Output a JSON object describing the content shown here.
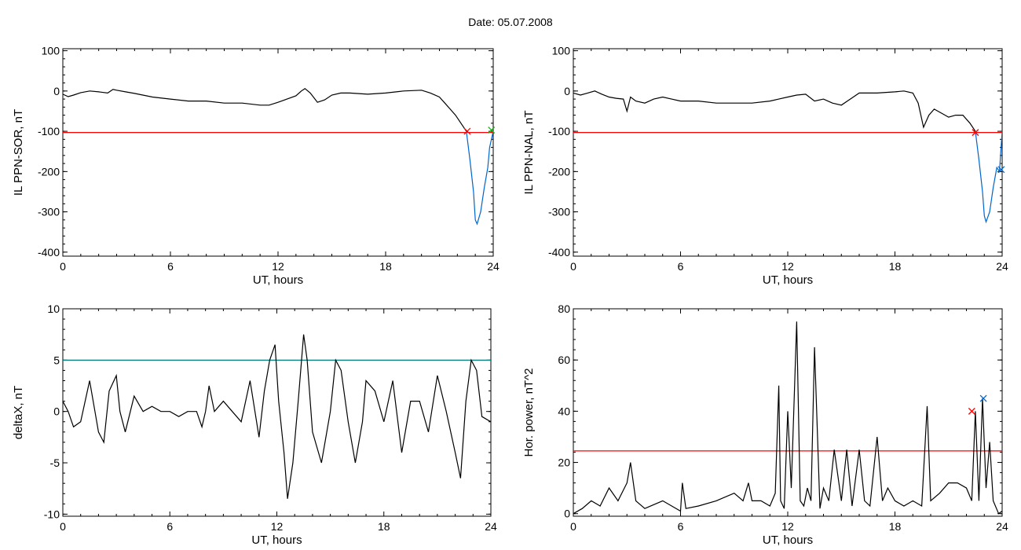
{
  "header": {
    "title": "Date:  05.07.2008"
  },
  "chart_data": [
    {
      "id": "p1",
      "type": "line",
      "title": "",
      "xlabel": "UT, hours",
      "ylabel": "IL PPN-SOR, nT",
      "xlim": [
        0,
        24
      ],
      "ylim": [
        -410,
        105
      ],
      "xticks": [
        0,
        6,
        12,
        18,
        24
      ],
      "yticks": [
        -400,
        -300,
        -200,
        -100,
        0,
        100
      ],
      "threshold": {
        "value": -103,
        "color": "#ff0000"
      },
      "series": [
        {
          "color": "#000000",
          "x": [
            0,
            0.3,
            0.6,
            1,
            1.5,
            2,
            2.5,
            2.8,
            3,
            3.5,
            4,
            5,
            6,
            7,
            8,
            9,
            10,
            11,
            11.5,
            12,
            12.5,
            13,
            13.3,
            13.5,
            13.8,
            14.2,
            14.6,
            15,
            15.5,
            16,
            17,
            18,
            19,
            20,
            20.5,
            21,
            21.3,
            21.6,
            21.9,
            22.2,
            22.5
          ],
          "y": [
            -8,
            -14,
            -10,
            -4,
            0,
            -2,
            -5,
            4,
            2,
            -2,
            -6,
            -15,
            -20,
            -25,
            -25,
            -30,
            -30,
            -35,
            -35,
            -28,
            -20,
            -12,
            0,
            6,
            -5,
            -28,
            -22,
            -10,
            -5,
            -5,
            -8,
            -5,
            0,
            2,
            -5,
            -15,
            -30,
            -45,
            -60,
            -80,
            -100
          ]
        },
        {
          "color": "#0066cc",
          "x": [
            22.5,
            22.7,
            22.9,
            23.0,
            23.1,
            23.3,
            23.5,
            23.7,
            23.8,
            24
          ],
          "y": [
            -100,
            -170,
            -250,
            -320,
            -330,
            -300,
            -240,
            -190,
            -140,
            -100
          ]
        }
      ],
      "markers": [
        {
          "x": 22.55,
          "y": -100,
          "symbol": "x",
          "color": "#ff0000"
        },
        {
          "x": 23.9,
          "y": -97,
          "symbol": "x",
          "color": "#22aa22"
        }
      ]
    },
    {
      "id": "p2",
      "type": "line",
      "title": "",
      "xlabel": "UT, hours",
      "ylabel": "IL PPN-NAL, nT",
      "xlim": [
        0,
        24
      ],
      "ylim": [
        -410,
        105
      ],
      "xticks": [
        0,
        6,
        12,
        18,
        24
      ],
      "yticks": [
        -400,
        -300,
        -200,
        -100,
        0,
        100
      ],
      "threshold": {
        "value": -103,
        "color": "#ff0000"
      },
      "series": [
        {
          "color": "#000000",
          "x": [
            0,
            0.4,
            0.8,
            1.2,
            1.6,
            2,
            2.4,
            2.8,
            3,
            3.2,
            3.5,
            4,
            4.5,
            5,
            5.5,
            6,
            7,
            8,
            9,
            10,
            11,
            11.5,
            12,
            12.5,
            13,
            13.5,
            14,
            14.5,
            15,
            15.5,
            16,
            17,
            18,
            18.5,
            19,
            19.3,
            19.6,
            19.9,
            20.2,
            20.6,
            21,
            21.4,
            21.8,
            22.2,
            22.5
          ],
          "y": [
            -5,
            -10,
            -5,
            0,
            -8,
            -15,
            -18,
            -20,
            -50,
            -15,
            -25,
            -30,
            -20,
            -15,
            -20,
            -25,
            -25,
            -30,
            -30,
            -30,
            -25,
            -20,
            -15,
            -10,
            -8,
            -25,
            -20,
            -30,
            -35,
            -20,
            -5,
            -5,
            -2,
            0,
            -5,
            -30,
            -90,
            -60,
            -45,
            -55,
            -65,
            -60,
            -60,
            -80,
            -100
          ]
        },
        {
          "color": "#0066cc",
          "x": [
            22.5,
            22.7,
            22.9,
            23.0,
            23.1,
            23.3,
            23.5,
            23.7,
            23.85,
            24
          ],
          "y": [
            -100,
            -170,
            -250,
            -310,
            -325,
            -300,
            -240,
            -190,
            -200,
            -100
          ]
        }
      ],
      "markers": [
        {
          "x": 22.5,
          "y": -103,
          "symbol": "x",
          "color": "#ff0000"
        },
        {
          "x": 23.95,
          "y": -195,
          "symbol": "x",
          "color": "#0066cc"
        }
      ]
    },
    {
      "id": "p3",
      "type": "line",
      "title": "",
      "xlabel": "UT, hours",
      "ylabel": "deltaX, nT",
      "xlim": [
        0,
        24
      ],
      "ylim": [
        -10.2,
        10
      ],
      "xticks": [
        0,
        6,
        12,
        18,
        24
      ],
      "yticks": [
        -10,
        -5,
        0,
        5,
        10
      ],
      "threshold": {
        "value": 5,
        "color": "#007f7f"
      },
      "series": [
        {
          "color": "#000000",
          "x": [
            0,
            0.3,
            0.6,
            1,
            1.5,
            1.8,
            2,
            2.3,
            2.6,
            3,
            3.2,
            3.5,
            4,
            4.5,
            5,
            5.5,
            6,
            6.5,
            7,
            7.5,
            7.8,
            8,
            8.2,
            8.5,
            9,
            9.5,
            10,
            10.5,
            11,
            11.3,
            11.6,
            11.9,
            12.1,
            12.4,
            12.6,
            12.9,
            13.2,
            13.5,
            13.7,
            14,
            14.5,
            15,
            15.3,
            15.6,
            16,
            16.4,
            16.8,
            17,
            17.5,
            18,
            18.5,
            19,
            19.5,
            20,
            20.5,
            21,
            21.5,
            22,
            22.3,
            22.6,
            22.9,
            23.2,
            23.5,
            24
          ],
          "y": [
            1,
            0,
            -1.5,
            -1,
            3,
            0,
            -2,
            -3,
            2,
            3.5,
            0,
            -2,
            1.5,
            0,
            0.5,
            0,
            0,
            -0.5,
            0,
            0,
            -1.5,
            0,
            2.5,
            0,
            1,
            0,
            -1,
            3,
            -2.5,
            2,
            5,
            6.5,
            1,
            -4,
            -8.5,
            -5,
            1,
            7.5,
            5,
            -2,
            -5,
            0,
            5,
            4,
            -1,
            -5,
            -1,
            3,
            2,
            -1,
            3,
            -4,
            1,
            1,
            -2,
            3.5,
            0,
            -4,
            -6.5,
            1,
            5,
            4,
            -0.5,
            -1
          ]
        }
      ],
      "markers": []
    },
    {
      "id": "p4",
      "type": "line",
      "title": "",
      "xlabel": "UT, hours",
      "ylabel": "Hor. power, nT^2",
      "xlim": [
        0,
        24
      ],
      "ylim": [
        -1,
        80
      ],
      "xticks": [
        0,
        6,
        12,
        18,
        24
      ],
      "yticks": [
        0,
        20,
        40,
        60,
        80
      ],
      "threshold": {
        "value": 24.5,
        "color": "#ff0000"
      },
      "series": [
        {
          "color": "#000000",
          "x": [
            0,
            0.5,
            1,
            1.5,
            2,
            2.5,
            3,
            3.2,
            3.5,
            4,
            5,
            6,
            6.1,
            6.3,
            7,
            8,
            9,
            9.5,
            9.8,
            10,
            10.5,
            11,
            11.3,
            11.5,
            11.6,
            11.8,
            12,
            12.2,
            12.5,
            12.7,
            12.9,
            13.1,
            13.3,
            13.5,
            13.8,
            14,
            14.3,
            14.6,
            15,
            15.3,
            15.6,
            16,
            16.3,
            16.6,
            17,
            17.3,
            17.6,
            18,
            18.5,
            19,
            19.5,
            19.8,
            20,
            20.5,
            21,
            21.5,
            22,
            22.3,
            22.5,
            22.7,
            22.9,
            23.1,
            23.3,
            23.5,
            23.8,
            24
          ],
          "y": [
            0,
            2,
            5,
            3,
            10,
            5,
            12,
            20,
            5,
            2,
            5,
            1,
            12,
            2,
            3,
            5,
            8,
            5,
            12,
            5,
            5,
            3,
            8,
            50,
            5,
            2,
            40,
            10,
            75,
            5,
            3,
            10,
            5,
            65,
            2,
            10,
            5,
            25,
            5,
            25,
            3,
            25,
            5,
            3,
            30,
            5,
            10,
            5,
            3,
            5,
            3,
            42,
            5,
            8,
            12,
            12,
            10,
            5,
            40,
            5,
            45,
            10,
            28,
            5,
            0,
            1
          ]
        }
      ],
      "markers": [
        {
          "x": 22.3,
          "y": 40,
          "symbol": "x",
          "color": "#ff0000"
        },
        {
          "x": 22.95,
          "y": 45,
          "symbol": "x",
          "color": "#0066cc"
        }
      ]
    }
  ]
}
